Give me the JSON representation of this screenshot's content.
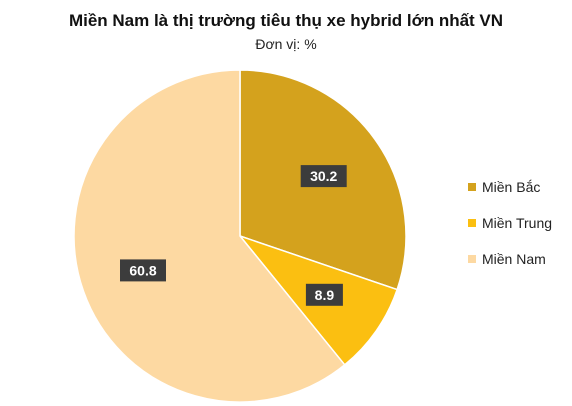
{
  "chart_data": {
    "type": "pie",
    "title": "Miền Nam là thị trường tiêu thụ xe hybrid lớn nhất VN",
    "subtitle": "Đơn vị: %",
    "categories": [
      "Miền Bắc",
      "Miền Trung",
      "Miền Nam"
    ],
    "values": [
      30.2,
      8.9,
      60.8
    ],
    "data_labels": [
      "30.2",
      "8.9",
      "60.8"
    ],
    "colors": [
      "#d4a21d",
      "#fbbf11",
      "#fdd9a2"
    ],
    "start": "12 o'clock",
    "direction": "clockwise",
    "legend_position": "right"
  }
}
